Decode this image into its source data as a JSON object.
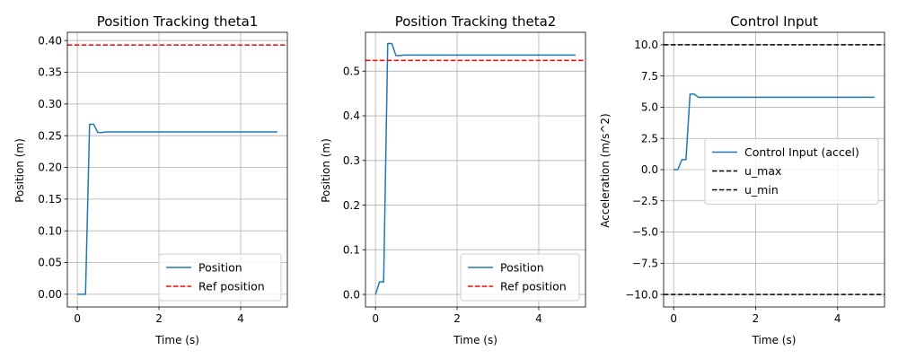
{
  "chart_data": [
    {
      "type": "line",
      "title": "Position Tracking theta1",
      "xlabel": "Time (s)",
      "ylabel": "Position (m)",
      "xlim": [
        -0.245,
        5.145
      ],
      "ylim": [
        -0.02,
        0.413
      ],
      "xticks": [
        0,
        2,
        4
      ],
      "yticks": [
        0.0,
        0.05,
        0.1,
        0.15,
        0.2,
        0.25,
        0.3,
        0.35,
        0.4
      ],
      "ytick_labels": [
        "0.00",
        "0.05",
        "0.10",
        "0.15",
        "0.20",
        "0.25",
        "0.30",
        "0.35",
        "0.40"
      ],
      "grid": true,
      "legend_position": "lower-right",
      "series": [
        {
          "name": "Position",
          "color": "#1f77b4",
          "style": "solid",
          "x": [
            0,
            0.1,
            0.2,
            0.3,
            0.4,
            0.5,
            0.6,
            0.7,
            4.9
          ],
          "y": [
            0.0,
            0.0,
            0.0,
            0.268,
            0.268,
            0.255,
            0.255,
            0.256,
            0.256
          ]
        },
        {
          "name": "Ref position",
          "color": "#ff0000",
          "style": "dashed",
          "hline": 0.393
        }
      ]
    },
    {
      "type": "line",
      "title": "Position Tracking theta2",
      "xlabel": "Time (s)",
      "ylabel": "Position (m)",
      "xlim": [
        -0.245,
        5.145
      ],
      "ylim": [
        -0.028,
        0.587
      ],
      "xticks": [
        0,
        2,
        4
      ],
      "yticks": [
        0.0,
        0.1,
        0.2,
        0.3,
        0.4,
        0.5
      ],
      "ytick_labels": [
        "0.0",
        "0.1",
        "0.2",
        "0.3",
        "0.4",
        "0.5"
      ],
      "grid": true,
      "legend_position": "lower-right",
      "series": [
        {
          "name": "Position",
          "color": "#1f77b4",
          "style": "solid",
          "x": [
            0,
            0.1,
            0.2,
            0.3,
            0.4,
            0.5,
            0.6,
            0.7,
            4.9
          ],
          "y": [
            0.0,
            0.028,
            0.028,
            0.562,
            0.562,
            0.535,
            0.535,
            0.536,
            0.536
          ]
        },
        {
          "name": "Ref position",
          "color": "#ff0000",
          "style": "dashed",
          "hline": 0.524
        }
      ]
    },
    {
      "type": "line",
      "title": "Control Input",
      "xlabel": "Time (s)",
      "ylabel": "Acceleration (m/s^2)",
      "xlim": [
        -0.245,
        5.145
      ],
      "ylim": [
        -11.0,
        11.0
      ],
      "xticks": [
        0,
        2,
        4
      ],
      "yticks": [
        -10.0,
        -7.5,
        -5.0,
        -2.5,
        0.0,
        2.5,
        5.0,
        7.5,
        10.0
      ],
      "ytick_labels": [
        "−10.0",
        "−7.5",
        "−5.0",
        "−2.5",
        "0.0",
        "2.5",
        "5.0",
        "7.5",
        "10.0"
      ],
      "grid": true,
      "legend_position": "center-right",
      "series": [
        {
          "name": "Control Input (accel)",
          "color": "#1f77b4",
          "style": "solid",
          "x": [
            0,
            0.1,
            0.2,
            0.3,
            0.4,
            0.5,
            0.6,
            0.7,
            4.9
          ],
          "y": [
            0.0,
            0.0,
            0.8,
            0.8,
            6.05,
            6.05,
            5.8,
            5.8,
            5.8
          ]
        },
        {
          "name": "u_max",
          "color": "#000000",
          "style": "dashed",
          "hline": 10.0
        },
        {
          "name": "u_min",
          "color": "#000000",
          "style": "dashed",
          "hline": -10.0
        }
      ]
    }
  ]
}
